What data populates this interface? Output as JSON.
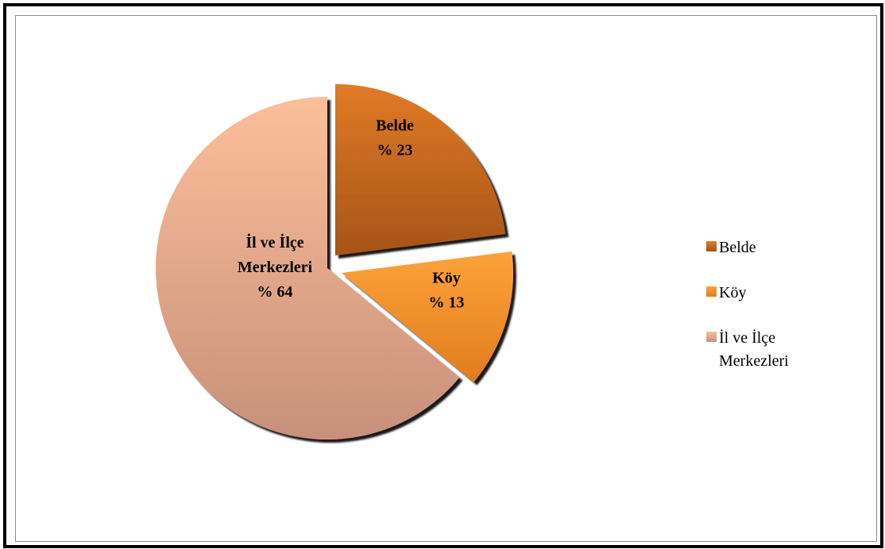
{
  "chart_data": {
    "type": "pie",
    "exploded": true,
    "legend_position": "right",
    "slices": [
      {
        "category": "Belde",
        "value": 23,
        "label_lines": [
          "Belde",
          "% 23"
        ],
        "color": "#c9621f",
        "color_light": "#e07a26",
        "color_dark": "#a65418",
        "legend_label_lines": [
          "Belde"
        ]
      },
      {
        "category": "Köy",
        "value": 13,
        "label_lines": [
          "Köy",
          "% 13"
        ],
        "color": "#f7922e",
        "color_light": "#ffa23a",
        "color_dark": "#e07d1e",
        "legend_label_lines": [
          "Köy"
        ]
      },
      {
        "category": "İl ve İlçe Merkezleri",
        "value": 64,
        "label_lines": [
          "İl ve İlçe",
          "Merkezleri",
          "% 64"
        ],
        "color": "#efb08c",
        "color_light": "#fcbf9a",
        "color_dark": "#c8907a",
        "legend_label_lines": [
          "İl ve İlçe",
          "Merkezleri"
        ]
      }
    ]
  }
}
